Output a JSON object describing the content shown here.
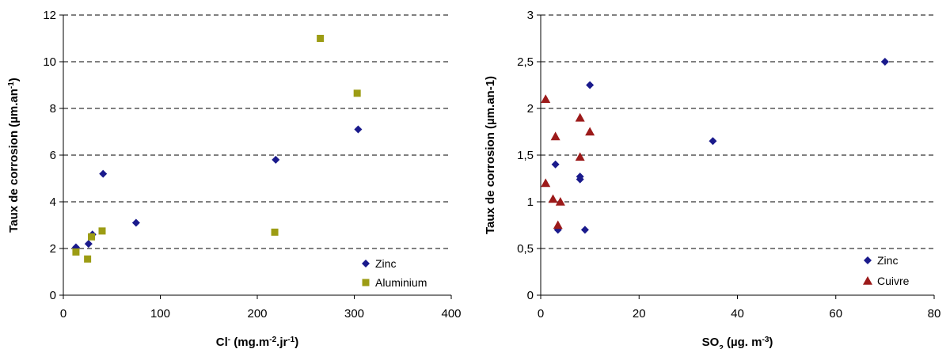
{
  "chart_data": [
    {
      "type": "scatter",
      "title": "",
      "xlabel": {
        "main": "Cl",
        "sup1": "-",
        "rest": " (mg.m",
        "sup2": "-2",
        "mid": ".jr",
        "sup3": "-1",
        "end": ")"
      },
      "ylabel": {
        "main": "Taux de corrosion (µm.an",
        "sup": "-1",
        "end": ")"
      },
      "xlim": [
        0,
        400
      ],
      "ylim": [
        0,
        12
      ],
      "xticks": [
        0,
        100,
        200,
        300,
        400
      ],
      "yticks": [
        0,
        2,
        4,
        6,
        8,
        10,
        12
      ],
      "xtick_labels": [
        "0",
        "100",
        "200",
        "300",
        "400"
      ],
      "ytick_labels": [
        "0",
        "2",
        "4",
        "6",
        "8",
        "10",
        "12"
      ],
      "grid": "horizontal dashed",
      "legend": "bottom-right",
      "series": [
        {
          "name": "Zinc",
          "marker": "diamond",
          "color": "#1a1a8c",
          "points": [
            [
              13,
              2.05
            ],
            [
              26,
              2.2
            ],
            [
              30,
              2.6
            ],
            [
              41,
              5.2
            ],
            [
              75,
              3.1
            ],
            [
              219,
              5.8
            ],
            [
              304,
              7.1
            ]
          ]
        },
        {
          "name": "Aluminium",
          "marker": "square",
          "color": "#9c9c14",
          "points": [
            [
              13,
              1.85
            ],
            [
              25,
              1.55
            ],
            [
              29,
              2.5
            ],
            [
              40,
              2.75
            ],
            [
              218,
              2.7
            ],
            [
              265,
              11.0
            ],
            [
              303,
              8.65
            ]
          ]
        }
      ]
    },
    {
      "type": "scatter",
      "title": "",
      "xlabel": {
        "main": "SO",
        "sub": "2",
        "rest": " (µg. m",
        "sup": "-3",
        "end": ")"
      },
      "ylabel": {
        "main": "Taux de corrosion (µm.an-1)"
      },
      "xlim": [
        0,
        80
      ],
      "ylim": [
        0,
        3
      ],
      "xticks": [
        0,
        20,
        40,
        60,
        80
      ],
      "yticks": [
        0,
        0.5,
        1,
        1.5,
        2,
        2.5,
        3
      ],
      "xtick_labels": [
        "0",
        "20",
        "40",
        "60",
        "80"
      ],
      "ytick_labels": [
        "0",
        "0,5",
        "1",
        "1,5",
        "2",
        "2,5",
        "3"
      ],
      "grid": "horizontal dashed",
      "legend": "bottom-right",
      "series": [
        {
          "name": "Zinc",
          "marker": "diamond",
          "color": "#1a1a8c",
          "points": [
            [
              3,
              1.4
            ],
            [
              3.5,
              0.7
            ],
            [
              8,
              1.27
            ],
            [
              8,
              1.24
            ],
            [
              9,
              0.7
            ],
            [
              10,
              2.25
            ],
            [
              35,
              1.65
            ],
            [
              70,
              2.5
            ]
          ]
        },
        {
          "name": "Cuivre",
          "marker": "triangle",
          "color": "#9c1a1a",
          "points": [
            [
              1,
              2.1
            ],
            [
              1,
              1.2
            ],
            [
              2.5,
              1.03
            ],
            [
              3,
              1.7
            ],
            [
              3.5,
              0.75
            ],
            [
              4,
              1.0
            ],
            [
              8,
              1.9
            ],
            [
              8,
              1.48
            ],
            [
              10,
              1.75
            ]
          ]
        }
      ]
    }
  ]
}
